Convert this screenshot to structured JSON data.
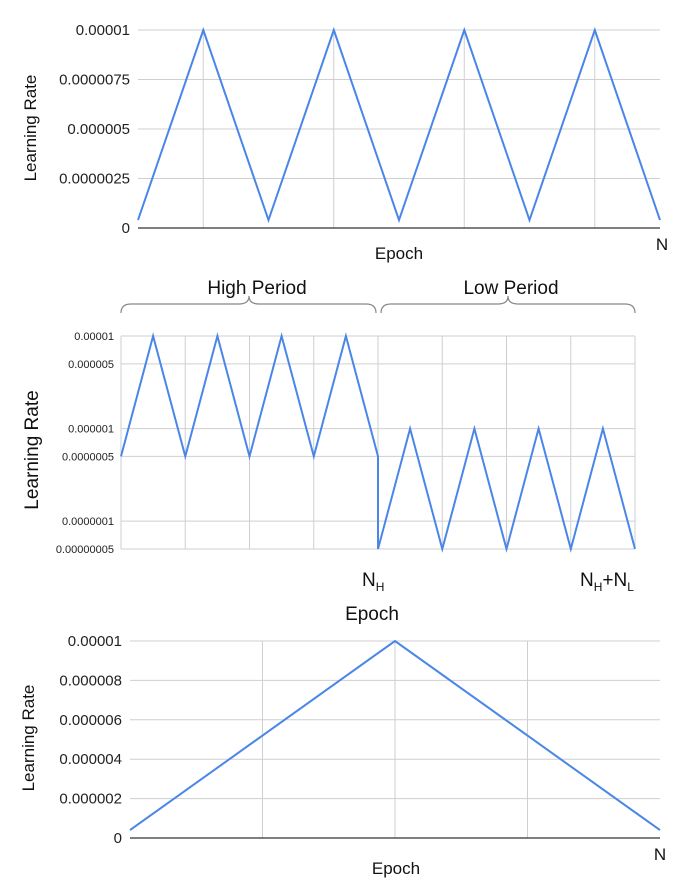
{
  "chart_data": [
    {
      "type": "line",
      "title": "",
      "xlabel": "Epoch",
      "ylabel": "Learning Rate",
      "x_end_label": "N",
      "y_ticks": [
        "0",
        "0.0000025",
        "0.000005",
        "0.0000075",
        "0.00001"
      ],
      "ylim": [
        0,
        1e-05
      ],
      "xlim": [
        0,
        8
      ],
      "series": [
        {
          "color": "#4a86e8",
          "x": [
            0,
            1,
            2,
            3,
            4,
            5,
            6,
            7,
            8
          ],
          "y": [
            4e-07,
            1e-05,
            4e-07,
            1e-05,
            4e-07,
            1e-05,
            4e-07,
            1e-05,
            4e-07
          ]
        }
      ],
      "grid": "vertical at peaks"
    },
    {
      "type": "line",
      "title": "",
      "xlabel": "Epoch",
      "ylabel": "Learning Rate",
      "yscale": "log",
      "period_labels": [
        "High Period",
        "Low Period"
      ],
      "x_marks": [
        {
          "x": 8,
          "base": "N",
          "sub": "H"
        },
        {
          "x": 16,
          "base": "N",
          "sub": "H",
          "plus_base": "N",
          "plus_sub": "L"
        }
      ],
      "y_ticks": [
        "0.00000005",
        "0.0000001",
        "0.0000005",
        "0.000001",
        "0.000005",
        "0.00001"
      ],
      "ylim": [
        5e-08,
        1e-05
      ],
      "xlim": [
        0,
        16
      ],
      "series": [
        {
          "color": "#4a86e8",
          "x": [
            0,
            1,
            2,
            3,
            4,
            5,
            6,
            7,
            8,
            8,
            9,
            10,
            11,
            12,
            13,
            14,
            15,
            16
          ],
          "y": [
            5e-07,
            1e-05,
            5e-07,
            1e-05,
            5e-07,
            1e-05,
            5e-07,
            1e-05,
            5e-07,
            5e-08,
            1e-06,
            5e-08,
            1e-06,
            5e-08,
            1e-06,
            5e-08,
            1e-06,
            5e-08
          ]
        }
      ],
      "grid": "vertical every 2 units, horizontal at ticks"
    },
    {
      "type": "line",
      "title": "",
      "xlabel": "Epoch",
      "ylabel": "Learning Rate",
      "x_end_label": "N",
      "y_ticks": [
        "0",
        "0.000002",
        "0.000004",
        "0.000006",
        "0.000008",
        "0.00001"
      ],
      "ylim": [
        0,
        1e-05
      ],
      "xlim": [
        0,
        2
      ],
      "series": [
        {
          "color": "#4a86e8",
          "x": [
            0,
            1,
            2
          ],
          "y": [
            4e-07,
            1e-05,
            4e-07
          ]
        }
      ],
      "grid": "vertical and horizontal"
    }
  ]
}
